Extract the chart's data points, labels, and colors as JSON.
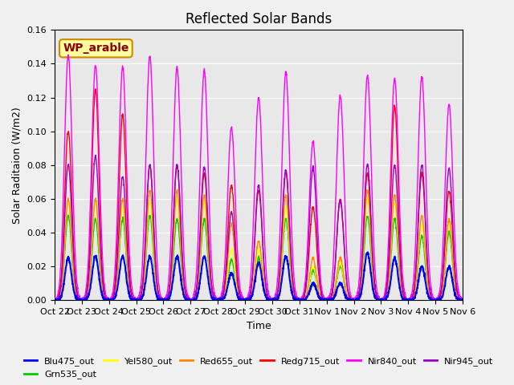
{
  "title": "Reflected Solar Bands",
  "xlabel": "Time",
  "ylabel": "Solar Raditaion (W/m2)",
  "annotation": "WP_arable",
  "ylim": [
    0,
    0.16
  ],
  "yticks": [
    0.0,
    0.02,
    0.04,
    0.06,
    0.08,
    0.1,
    0.12,
    0.14,
    0.16
  ],
  "xtick_labels": [
    "Oct 22",
    "Oct 23",
    "Oct 24",
    "Oct 25",
    "Oct 26",
    "Oct 27",
    "Oct 28",
    "Oct 29",
    "Oct 30",
    "Oct 31",
    "Nov 1",
    "Nov 2",
    "Nov 3",
    "Nov 4",
    "Nov 5",
    "Nov 6"
  ],
  "num_days": 15,
  "series_colors": {
    "Blu475_out": "#0000ff",
    "Grn535_out": "#00cc00",
    "Yel580_out": "#ffff00",
    "Red655_out": "#ff8800",
    "Redg715_out": "#ff0000",
    "Nir840_out": "#ff00ff",
    "Nir945_out": "#9900cc"
  },
  "background_color": "#e8e8e8",
  "nir840_peaks": [
    0.145,
    0.139,
    0.138,
    0.145,
    0.138,
    0.136,
    0.102,
    0.12,
    0.135,
    0.094,
    0.121,
    0.133,
    0.131,
    0.132,
    0.116
  ],
  "blu475_peaks": [
    0.025,
    0.026,
    0.026,
    0.026,
    0.026,
    0.026,
    0.016,
    0.022,
    0.026,
    0.01,
    0.01,
    0.028,
    0.025,
    0.02,
    0.02
  ],
  "grn535_peaks": [
    0.05,
    0.048,
    0.048,
    0.05,
    0.048,
    0.048,
    0.024,
    0.025,
    0.048,
    0.018,
    0.02,
    0.05,
    0.048,
    0.038,
    0.04
  ],
  "yel580_peaks": [
    0.058,
    0.058,
    0.055,
    0.058,
    0.06,
    0.058,
    0.03,
    0.03,
    0.055,
    0.02,
    0.022,
    0.06,
    0.058,
    0.045,
    0.046
  ],
  "red655_peaks": [
    0.06,
    0.06,
    0.06,
    0.065,
    0.065,
    0.062,
    0.045,
    0.035,
    0.062,
    0.025,
    0.025,
    0.065,
    0.062,
    0.05,
    0.048
  ],
  "redg715_peaks": [
    0.1,
    0.125,
    0.11,
    0.08,
    0.08,
    0.075,
    0.068,
    0.065,
    0.076,
    0.055,
    0.06,
    0.075,
    0.115,
    0.075,
    0.065
  ],
  "nir945_peaks": [
    0.08,
    0.085,
    0.073,
    0.08,
    0.08,
    0.079,
    0.052,
    0.068,
    0.077,
    0.079,
    0.059,
    0.08,
    0.08,
    0.08,
    0.078
  ]
}
